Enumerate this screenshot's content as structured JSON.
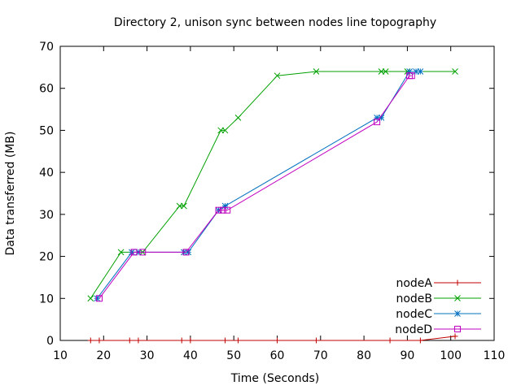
{
  "chart_data": {
    "type": "line",
    "title": "Directory 2, unison sync between nodes line topography",
    "xlabel": "Time (Seconds)",
    "ylabel": "Data transferred (MB)",
    "xlim": [
      10,
      110
    ],
    "ylim": [
      0,
      70
    ],
    "xticks": [
      10,
      20,
      30,
      40,
      50,
      60,
      70,
      80,
      90,
      100,
      110
    ],
    "yticks": [
      0,
      10,
      20,
      30,
      40,
      50,
      60,
      70
    ],
    "grid": false,
    "legend_position": "bottom-right",
    "series": [
      {
        "name": "nodeA",
        "color": "#c00000",
        "marker": "plus",
        "x": [
          17,
          19,
          26,
          28,
          38,
          40,
          48,
          51,
          60,
          69,
          86,
          93,
          101
        ],
        "y": [
          0,
          0,
          0,
          0,
          0,
          0,
          0,
          0,
          0,
          0,
          0,
          0,
          1
        ]
      },
      {
        "name": "nodeB",
        "color": "#00a000",
        "marker": "x",
        "x": [
          17,
          24,
          29,
          37.5,
          38.5,
          47,
          48,
          51,
          60,
          69,
          84,
          85,
          90,
          101
        ],
        "y": [
          10,
          21,
          21,
          32,
          32,
          50,
          50,
          53,
          63,
          64,
          64,
          64,
          64,
          64
        ]
      },
      {
        "name": "nodeC",
        "color": "#0070c0",
        "marker": "star",
        "x": [
          18.5,
          26.5,
          28,
          38.5,
          39.5,
          46.5,
          48,
          83,
          84,
          90.5,
          92,
          93
        ],
        "y": [
          10,
          21,
          21,
          21,
          21,
          31,
          32,
          53,
          53,
          64,
          64,
          64
        ]
      },
      {
        "name": "nodeD",
        "color": "#c000c0",
        "marker": "square",
        "x": [
          19,
          27,
          29,
          39,
          46.5,
          47.5,
          48.5,
          83,
          90.5,
          91
        ],
        "y": [
          10,
          21,
          21,
          21,
          31,
          31,
          31,
          52,
          63,
          63
        ]
      }
    ]
  }
}
